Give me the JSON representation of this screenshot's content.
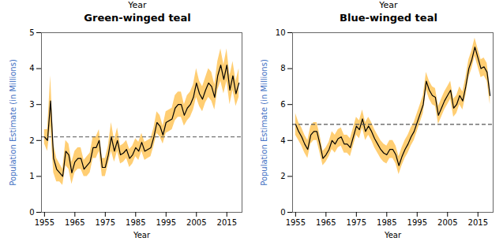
{
  "chart_data": [
    {
      "type": "line",
      "supertitle": "Year",
      "title": "Green-winged teal",
      "xlabel": "Year",
      "ylabel": "Population Estimate (in Millions)",
      "ylabel_color": "#4472C4",
      "x": [
        1955,
        1956,
        1957,
        1958,
        1959,
        1960,
        1961,
        1962,
        1963,
        1964,
        1965,
        1966,
        1967,
        1968,
        1969,
        1970,
        1971,
        1972,
        1973,
        1974,
        1975,
        1976,
        1977,
        1978,
        1979,
        1980,
        1981,
        1982,
        1983,
        1984,
        1985,
        1986,
        1987,
        1988,
        1989,
        1990,
        1991,
        1992,
        1993,
        1994,
        1995,
        1996,
        1997,
        1998,
        1999,
        2000,
        2001,
        2002,
        2003,
        2004,
        2005,
        2006,
        2007,
        2008,
        2009,
        2010,
        2011,
        2012,
        2013,
        2014,
        2015,
        2016,
        2017,
        2018,
        2019
      ],
      "series": [
        {
          "type": "area",
          "color": "#FFA500",
          "lower": [
            1.9,
            1.7,
            2.4,
            1.1,
            0.85,
            0.85,
            0.75,
            1.3,
            1.2,
            0.78,
            1.1,
            1.2,
            1.2,
            1.0,
            1.0,
            1.1,
            1.5,
            1.5,
            1.7,
            1.0,
            1.0,
            1.35,
            1.7,
            1.4,
            1.7,
            1.35,
            1.4,
            1.5,
            1.25,
            1.35,
            1.55,
            1.45,
            1.7,
            1.45,
            1.5,
            1.55,
            1.85,
            2.2,
            2.1,
            1.9,
            2.2,
            2.25,
            2.3,
            2.55,
            2.65,
            2.65,
            2.4,
            2.55,
            2.65,
            2.85,
            3.2,
            2.95,
            2.8,
            3.05,
            3.2,
            3.1,
            2.85,
            3.4,
            3.65,
            3.3,
            3.65,
            3.0,
            3.4,
            2.95,
            3.2
          ],
          "upper": [
            2.3,
            2.3,
            3.8,
            1.9,
            1.5,
            1.35,
            1.2,
            2.0,
            1.9,
            1.4,
            1.7,
            1.8,
            1.8,
            1.45,
            1.55,
            1.65,
            2.1,
            2.1,
            2.3,
            1.5,
            1.5,
            1.85,
            2.5,
            2.0,
            2.35,
            1.85,
            1.9,
            2.0,
            1.75,
            1.85,
            2.05,
            1.95,
            2.2,
            1.95,
            2.0,
            2.05,
            2.35,
            2.8,
            2.7,
            2.4,
            2.8,
            2.85,
            2.9,
            3.25,
            3.35,
            3.35,
            3.0,
            3.25,
            3.35,
            3.55,
            4.0,
            3.65,
            3.5,
            3.75,
            4.0,
            3.9,
            3.55,
            4.2,
            4.55,
            4.1,
            4.55,
            3.8,
            4.2,
            3.65,
            4.0
          ]
        },
        {
          "type": "line",
          "color": "#000000",
          "values": [
            2.1,
            2.0,
            3.1,
            1.5,
            1.2,
            1.1,
            1.0,
            1.7,
            1.6,
            1.1,
            1.4,
            1.5,
            1.5,
            1.2,
            1.3,
            1.4,
            1.8,
            1.8,
            2.0,
            1.25,
            1.25,
            1.6,
            2.1,
            1.7,
            2.0,
            1.6,
            1.65,
            1.75,
            1.5,
            1.6,
            1.8,
            1.7,
            1.95,
            1.7,
            1.75,
            1.8,
            2.1,
            2.5,
            2.4,
            2.15,
            2.5,
            2.55,
            2.6,
            2.9,
            3.0,
            3.0,
            2.7,
            2.9,
            3.0,
            3.2,
            3.6,
            3.3,
            3.15,
            3.4,
            3.6,
            3.5,
            3.2,
            3.8,
            4.1,
            3.7,
            4.1,
            3.4,
            3.8,
            3.3,
            3.6
          ]
        },
        {
          "type": "hline",
          "color": "#555555",
          "line_style": "dashed",
          "y": 2.1
        }
      ],
      "xlim": [
        1954,
        2020
      ],
      "xticks": [
        1955,
        1965,
        1975,
        1985,
        1995,
        2005,
        2015
      ],
      "ylim": [
        0,
        5
      ],
      "yticks": [
        0,
        1,
        2,
        3,
        4,
        5
      ]
    },
    {
      "type": "line",
      "supertitle": "Year",
      "title": "Blue-winged teal",
      "xlabel": "Year",
      "ylabel": "Population Estimate (in Millions)",
      "ylabel_color": "#4472C4",
      "x": [
        1955,
        1956,
        1957,
        1958,
        1959,
        1960,
        1961,
        1962,
        1963,
        1964,
        1965,
        1966,
        1967,
        1968,
        1969,
        1970,
        1971,
        1972,
        1973,
        1974,
        1975,
        1976,
        1977,
        1978,
        1979,
        1980,
        1981,
        1982,
        1983,
        1984,
        1985,
        1986,
        1987,
        1988,
        1989,
        1990,
        1991,
        1992,
        1993,
        1994,
        1995,
        1996,
        1997,
        1998,
        1999,
        2000,
        2001,
        2002,
        2003,
        2004,
        2005,
        2006,
        2007,
        2008,
        2009,
        2010,
        2011,
        2012,
        2013,
        2014,
        2015,
        2016,
        2017,
        2018,
        2019
      ],
      "series": [
        {
          "type": "area",
          "color": "#FFA500",
          "lower": [
            4.3,
            4.0,
            3.7,
            3.3,
            3.0,
            3.8,
            4.0,
            4.0,
            3.3,
            2.6,
            2.8,
            3.1,
            3.5,
            3.3,
            3.6,
            3.7,
            3.3,
            3.3,
            3.1,
            3.7,
            4.3,
            4.1,
            4.7,
            4.0,
            4.3,
            4.0,
            3.6,
            3.3,
            3.0,
            2.8,
            2.7,
            3.0,
            3.0,
            2.7,
            2.1,
            2.6,
            3.0,
            3.3,
            3.7,
            4.0,
            4.5,
            5.0,
            5.5,
            6.8,
            6.3,
            6.0,
            5.9,
            4.9,
            5.3,
            5.7,
            6.0,
            6.3,
            5.3,
            5.5,
            6.0,
            5.7,
            6.5,
            7.5,
            8.0,
            8.7,
            8.1,
            7.5,
            7.6,
            7.3,
            6.0
          ],
          "upper": [
            5.5,
            5.0,
            4.7,
            4.3,
            4.0,
            4.8,
            5.0,
            5.0,
            4.3,
            3.4,
            3.6,
            3.9,
            4.5,
            4.3,
            4.6,
            4.7,
            4.3,
            4.3,
            4.1,
            4.7,
            5.3,
            5.1,
            5.7,
            5.0,
            5.3,
            5.0,
            4.6,
            4.3,
            4.0,
            3.8,
            3.7,
            4.0,
            4.0,
            3.7,
            3.1,
            3.6,
            4.0,
            4.3,
            4.7,
            5.0,
            5.5,
            6.0,
            6.5,
            7.8,
            7.3,
            7.0,
            6.9,
            5.9,
            6.3,
            6.7,
            7.0,
            7.3,
            6.3,
            6.5,
            7.0,
            6.7,
            7.5,
            8.5,
            9.0,
            9.7,
            9.1,
            8.5,
            8.6,
            8.3,
            7.0
          ]
        },
        {
          "type": "line",
          "color": "#000000",
          "values": [
            4.9,
            4.5,
            4.2,
            3.8,
            3.5,
            4.3,
            4.5,
            4.5,
            3.8,
            3.0,
            3.2,
            3.5,
            4.0,
            3.8,
            4.1,
            4.2,
            3.8,
            3.8,
            3.6,
            4.2,
            4.8,
            4.6,
            5.2,
            4.5,
            4.8,
            4.5,
            4.1,
            3.8,
            3.5,
            3.3,
            3.2,
            3.5,
            3.5,
            3.2,
            2.6,
            3.1,
            3.5,
            3.8,
            4.2,
            4.5,
            5.0,
            5.5,
            6.0,
            7.3,
            6.8,
            6.5,
            6.4,
            5.4,
            5.8,
            6.2,
            6.5,
            6.8,
            5.8,
            6.0,
            6.5,
            6.2,
            7.0,
            8.0,
            8.5,
            9.2,
            8.6,
            8.0,
            8.1,
            7.8,
            6.5
          ]
        },
        {
          "type": "hline",
          "color": "#555555",
          "line_style": "dashed",
          "y": 4.9
        }
      ],
      "xlim": [
        1954,
        2020
      ],
      "xticks": [
        1955,
        1965,
        1975,
        1985,
        1995,
        2005,
        2015
      ],
      "ylim": [
        0,
        10
      ],
      "yticks": [
        0,
        2,
        4,
        6,
        8,
        10
      ]
    }
  ]
}
